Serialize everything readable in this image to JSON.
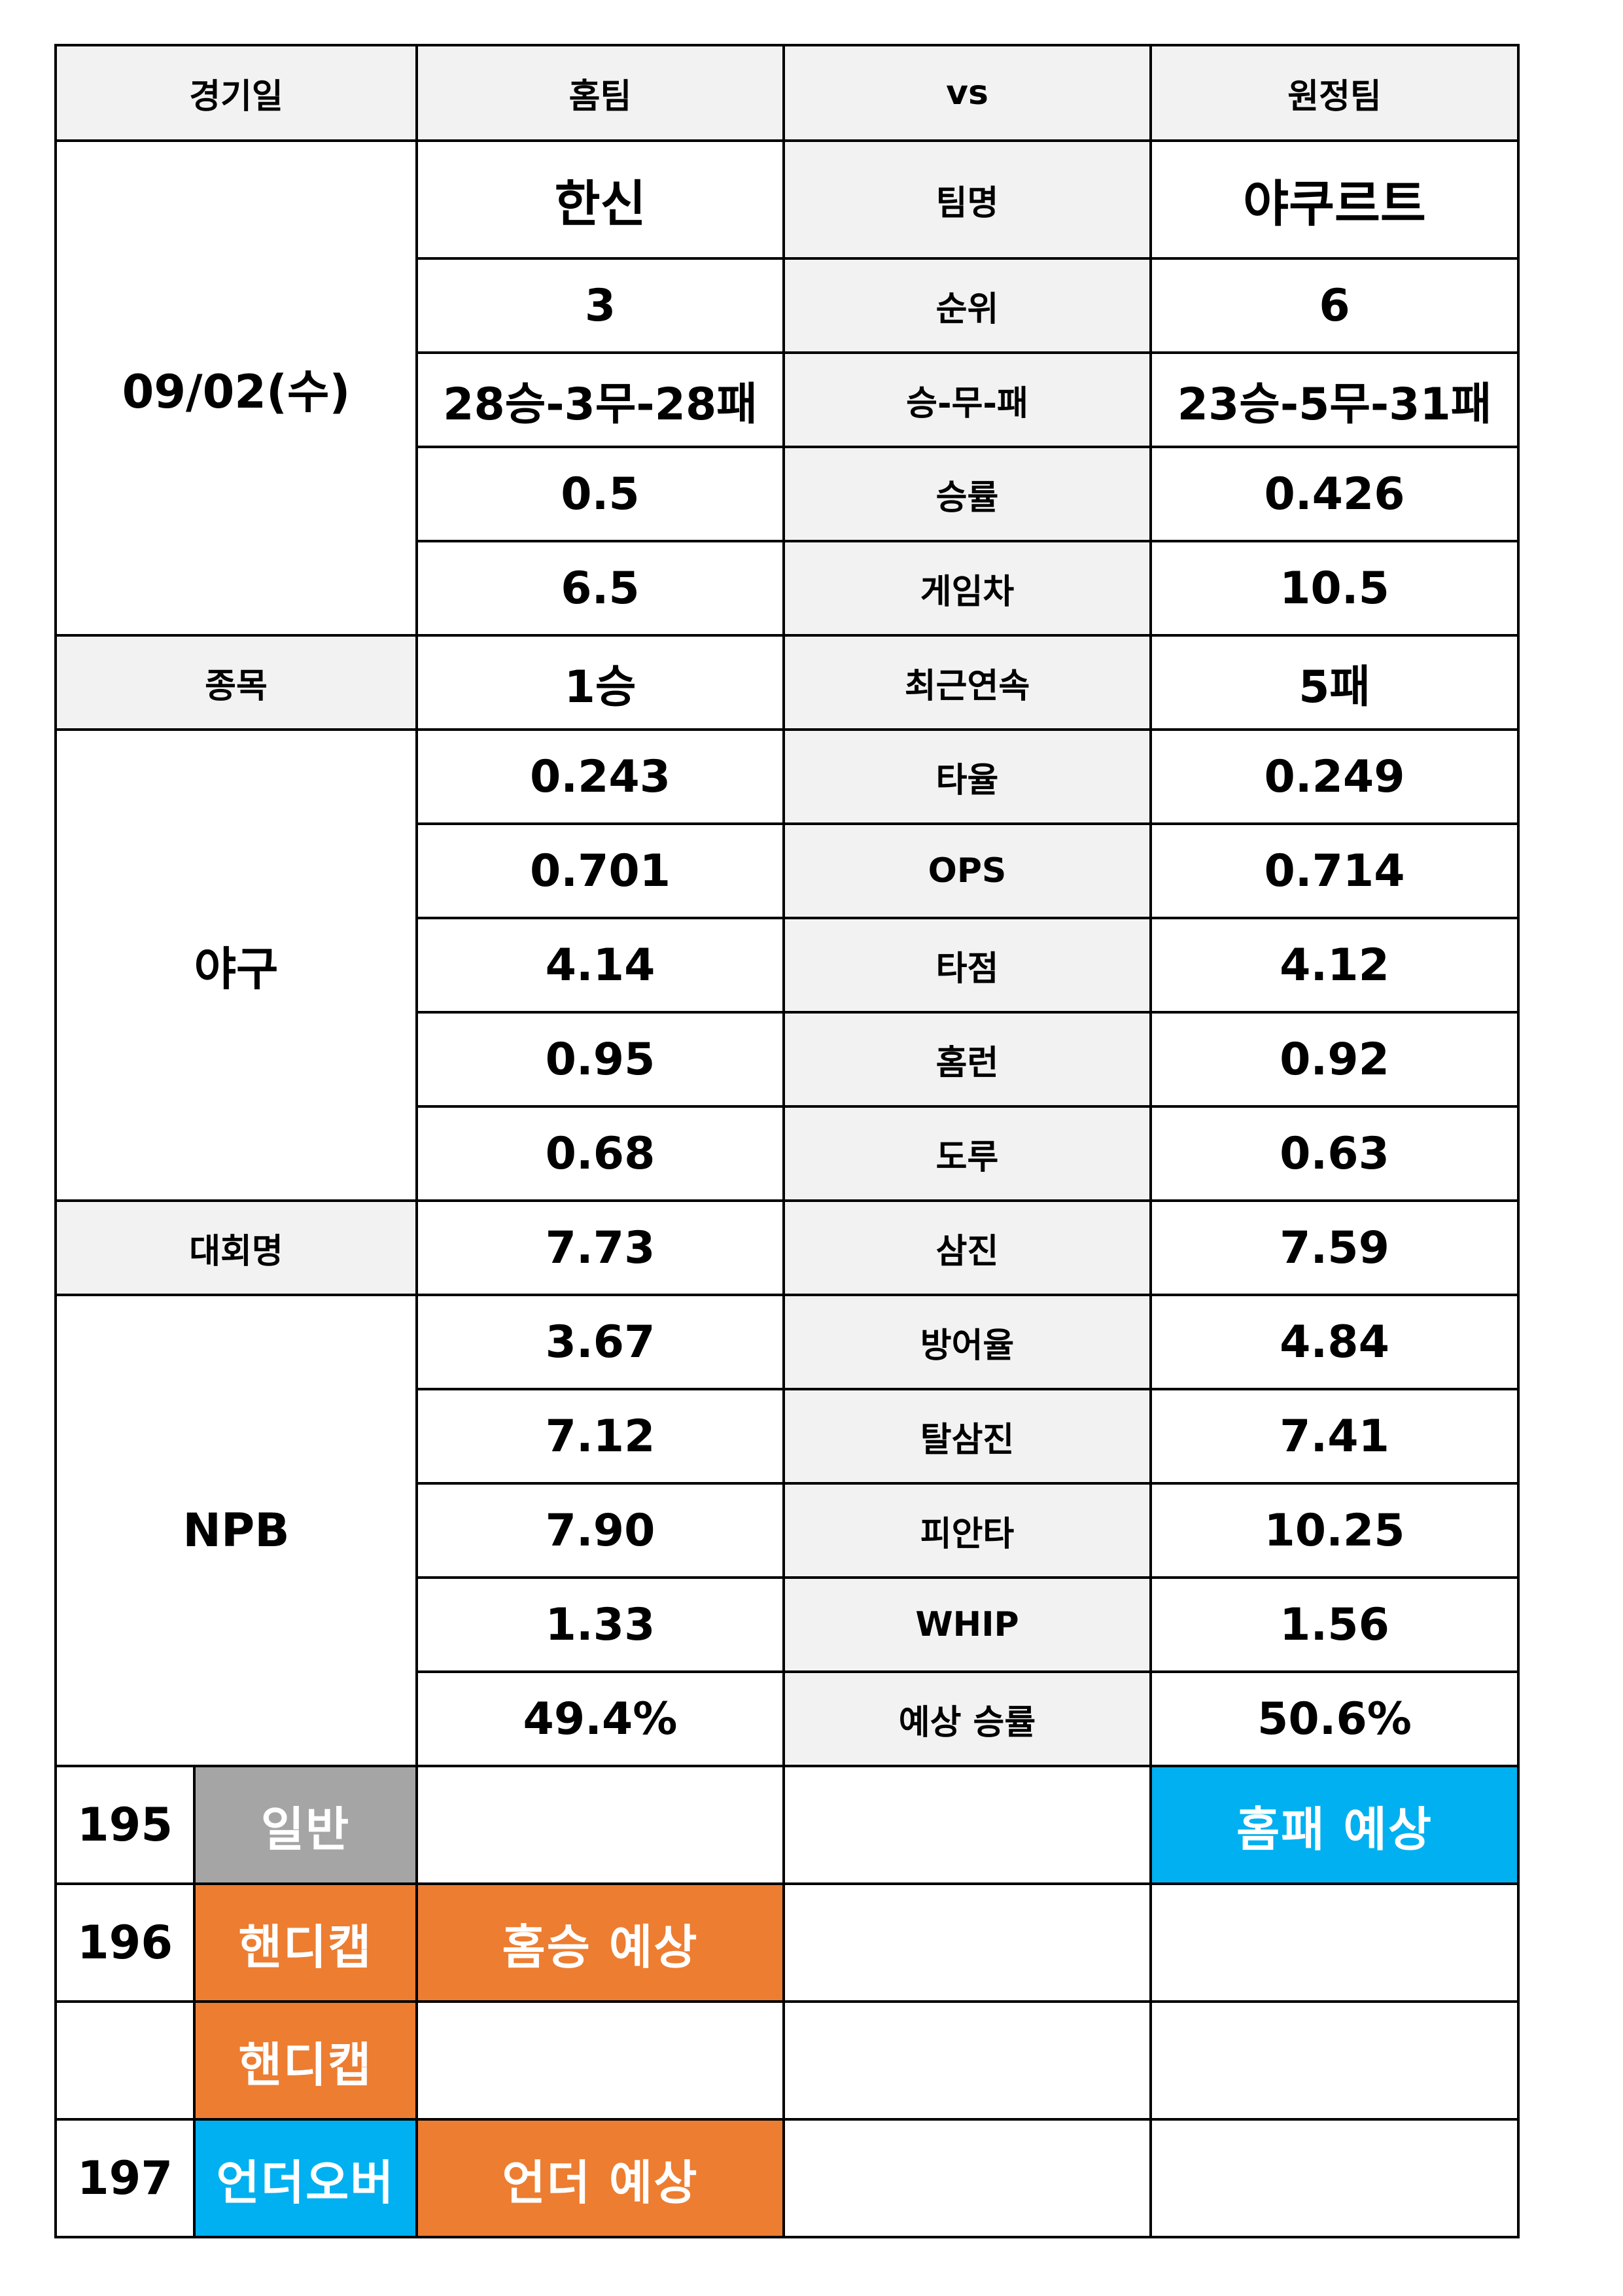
{
  "header": {
    "date_label": "경기일",
    "home_label": "홈팀",
    "vs_label": "vs",
    "away_label": "원정팀"
  },
  "match": {
    "date": "09/02(수)",
    "category_label": "종목",
    "sport": "야구",
    "league_label": "대회명",
    "league": "NPB"
  },
  "stats": [
    {
      "label": "팀명",
      "home": "한신",
      "away": "야쿠르트"
    },
    {
      "label": "순위",
      "home": "3",
      "away": "6"
    },
    {
      "label": "승-무-패",
      "home": "28승-3무-28패",
      "away": "23승-5무-31패"
    },
    {
      "label": "승률",
      "home": "0.5",
      "away": "0.426"
    },
    {
      "label": "게임차",
      "home": "6.5",
      "away": "10.5"
    },
    {
      "label": "최근연속",
      "home": "1승",
      "away": "5패"
    },
    {
      "label": "타율",
      "home": "0.243",
      "away": "0.249"
    },
    {
      "label": "OPS",
      "home": "0.701",
      "away": "0.714"
    },
    {
      "label": "타점",
      "home": "4.14",
      "away": "4.12"
    },
    {
      "label": "홈런",
      "home": "0.95",
      "away": "0.92"
    },
    {
      "label": "도루",
      "home": "0.68",
      "away": "0.63"
    },
    {
      "label": "삼진",
      "home": "7.73",
      "away": "7.59"
    },
    {
      "label": "방어율",
      "home": "3.67",
      "away": "4.84"
    },
    {
      "label": "탈삼진",
      "home": "7.12",
      "away": "7.41"
    },
    {
      "label": "피안타",
      "home": "7.90",
      "away": "10.25"
    },
    {
      "label": "WHIP",
      "home": "1.33",
      "away": "1.56"
    },
    {
      "label": "예상 승률",
      "home": "49.4%",
      "away": "50.6%"
    }
  ],
  "bets": [
    {
      "number": "195",
      "type": "일반",
      "home_pick": "",
      "draw_pick": "",
      "away_pick": "홈패 예상"
    },
    {
      "number": "196",
      "type": "핸디캡",
      "home_pick": "홈승 예상",
      "draw_pick": "",
      "away_pick": ""
    },
    {
      "number": "",
      "type": "핸디캡",
      "home_pick": "",
      "draw_pick": "",
      "away_pick": ""
    },
    {
      "number": "197",
      "type": "언더오버",
      "home_pick": "언더 예상",
      "draw_pick": "",
      "away_pick": ""
    }
  ],
  "colors": {
    "header_bg": "#f2f2f2",
    "general": "#a5a5a5",
    "handicap": "#ed7d31",
    "under_over": "#00b0f0",
    "pick_home": "#ed7d31",
    "pick_away": "#00b0f0"
  }
}
